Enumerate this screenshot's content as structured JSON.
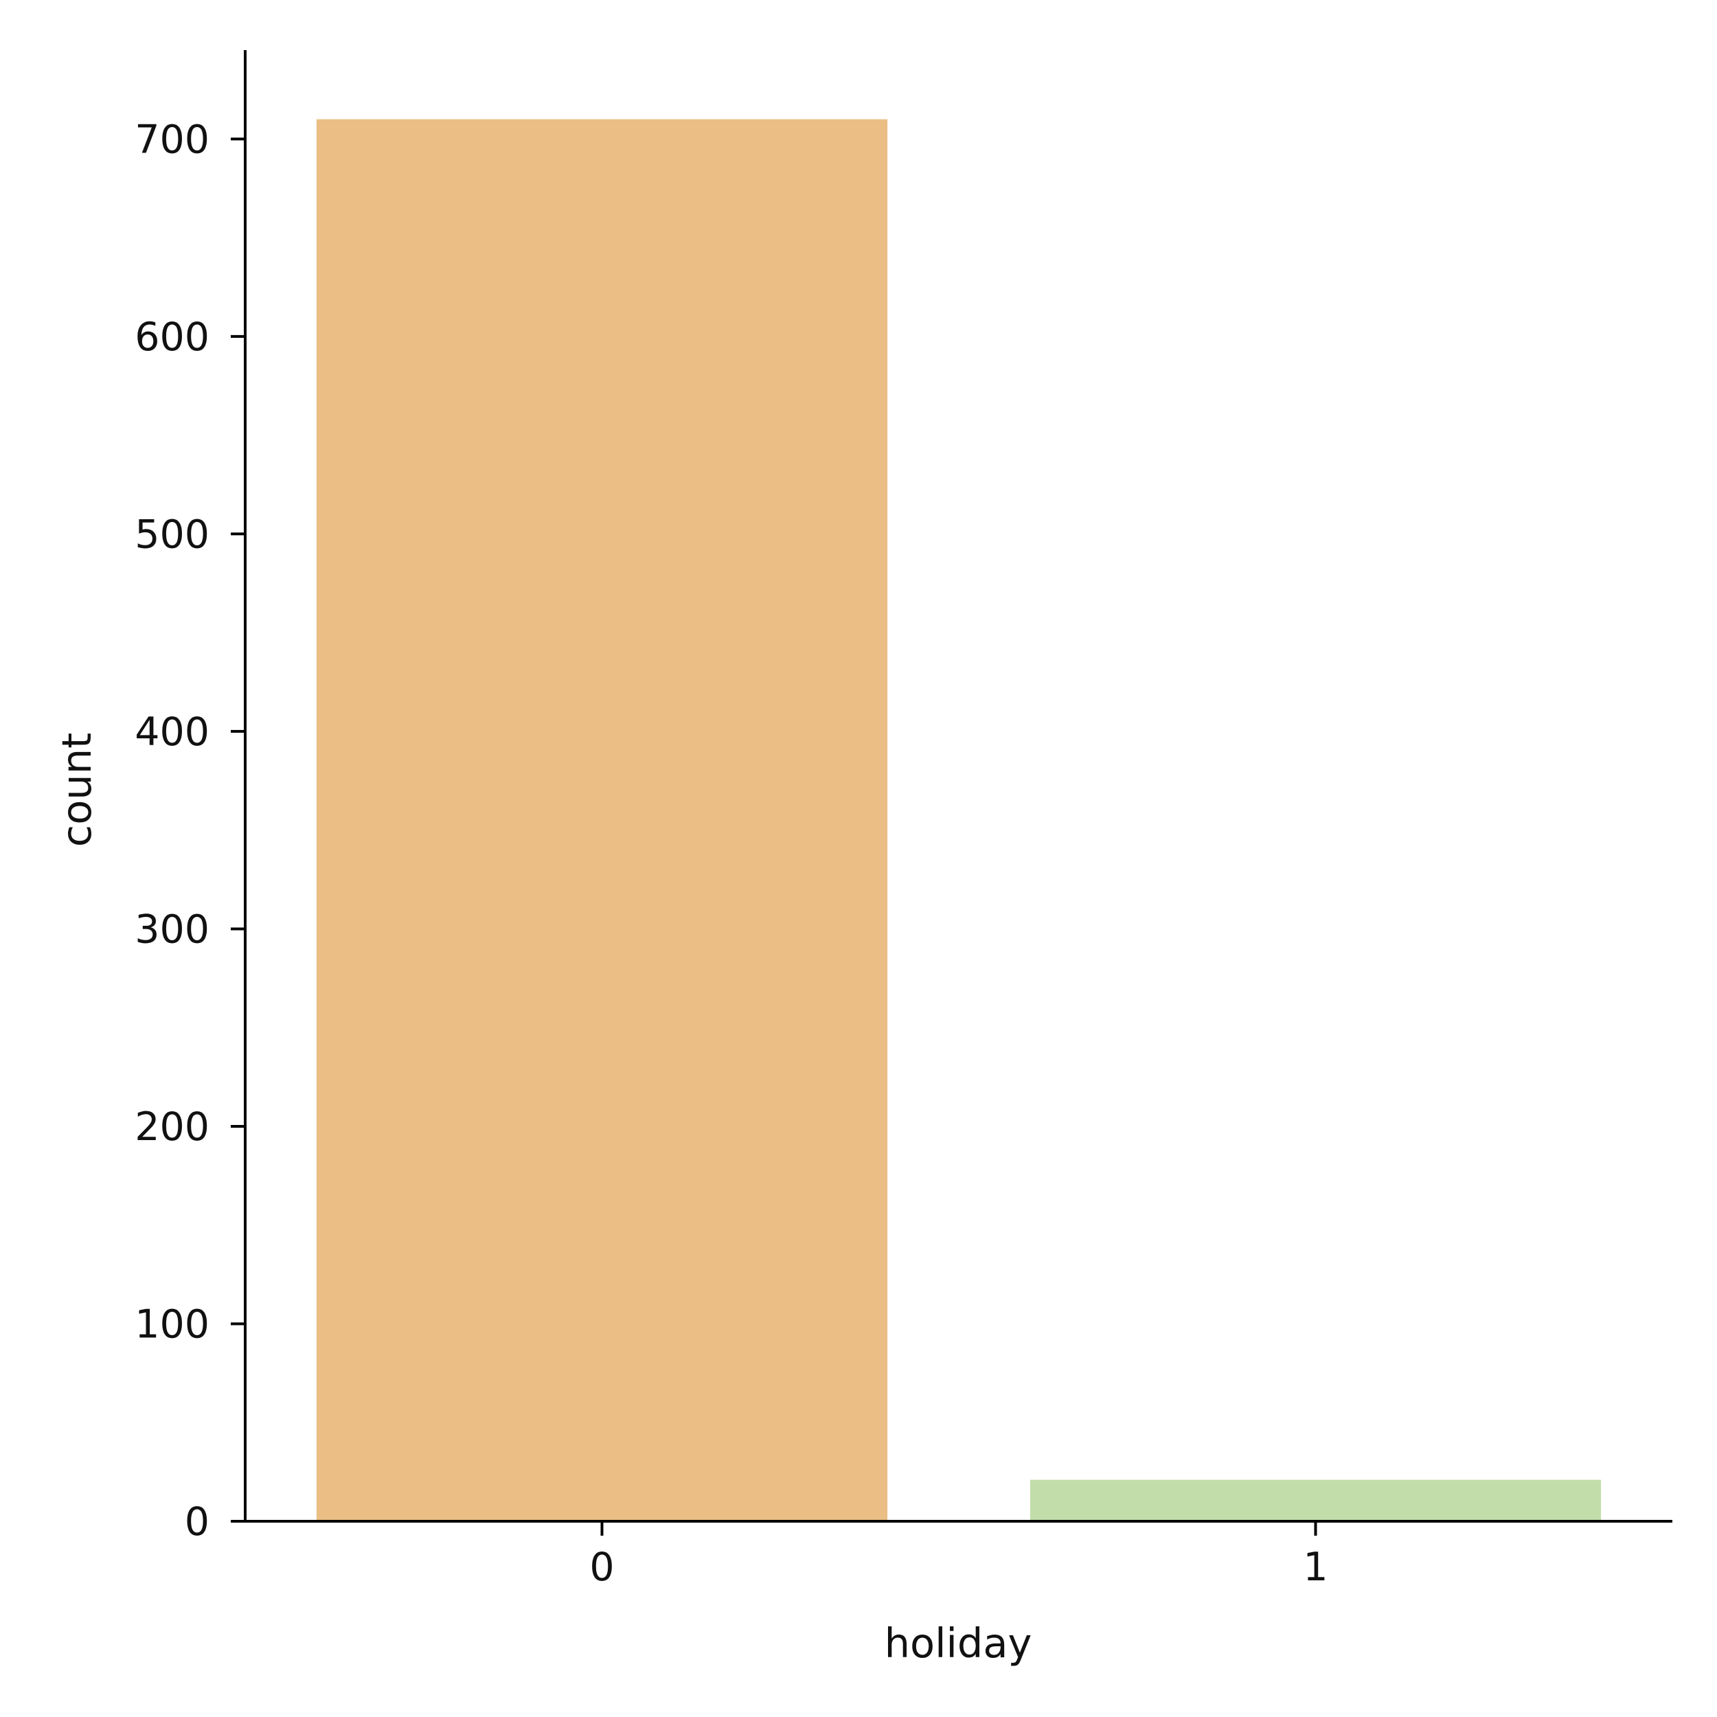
{
  "chart_data": {
    "type": "bar",
    "categories": [
      "0",
      "1"
    ],
    "values": [
      710,
      21
    ],
    "colors": [
      "#eabe84",
      "#c2ddaa"
    ],
    "title": "",
    "xlabel": "holiday",
    "ylabel": "count",
    "ylim": [
      0,
      745
    ],
    "yticks": [
      0,
      100,
      200,
      300,
      400,
      500,
      600,
      700
    ],
    "grid": false
  }
}
